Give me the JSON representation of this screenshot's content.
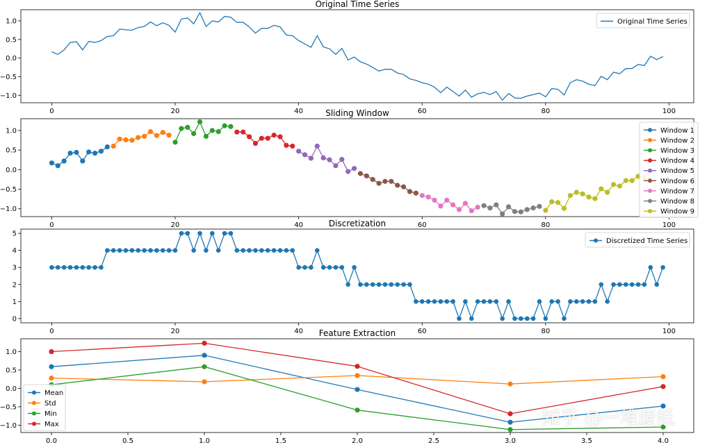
{
  "colors": {
    "tab_blue": "#1f77b4",
    "tab_orange": "#ff7f0e",
    "tab_green": "#2ca02c",
    "tab_red": "#d62728",
    "tab_purple": "#9467bd",
    "tab_brown": "#8c564b",
    "tab_pink": "#e377c2",
    "tab_gray": "#7f7f7f",
    "tab_olive": "#bcbd22"
  },
  "watermark": "知乎 @一堆废纸",
  "chart_data": [
    {
      "type": "line",
      "title": "Original Time Series",
      "xlim": [
        -5,
        104
      ],
      "ylim": [
        -1.2,
        1.3
      ],
      "xticks": [
        0,
        20,
        40,
        60,
        80,
        100
      ],
      "xtick_labels": [
        "0",
        "20",
        "40",
        "60",
        "80",
        "100"
      ],
      "yticks": [
        -1.0,
        -0.5,
        0.0,
        0.5,
        1.0
      ],
      "ytick_labels": [
        "−1.0",
        "−0.5",
        "0.0",
        "0.5",
        "1.0"
      ],
      "legend_position": "top-right",
      "series": [
        {
          "name": "Original Time Series",
          "color": "#1f77b4",
          "markers": false,
          "values": [
            0.17,
            0.1,
            0.22,
            0.42,
            0.44,
            0.22,
            0.45,
            0.42,
            0.47,
            0.58,
            0.6,
            0.78,
            0.76,
            0.75,
            0.82,
            0.85,
            0.97,
            0.87,
            0.95,
            0.88,
            0.7,
            1.05,
            1.08,
            0.92,
            1.22,
            0.85,
            1.0,
            0.97,
            1.12,
            1.1,
            0.96,
            0.96,
            0.84,
            0.67,
            0.8,
            0.8,
            0.88,
            0.84,
            0.62,
            0.6,
            0.47,
            0.38,
            0.29,
            0.6,
            0.3,
            0.25,
            0.1,
            0.26,
            -0.05,
            0.03,
            -0.1,
            -0.16,
            -0.25,
            -0.35,
            -0.3,
            -0.3,
            -0.4,
            -0.44,
            -0.56,
            -0.6,
            -0.66,
            -0.7,
            -0.78,
            -0.93,
            -0.78,
            -0.9,
            -1.02,
            -0.86,
            -1.05,
            -0.96,
            -0.92,
            -0.98,
            -0.9,
            -1.13,
            -0.95,
            -1.07,
            -1.08,
            -1.02,
            -0.98,
            -0.94,
            -1.04,
            -0.82,
            -0.84,
            -0.99,
            -0.66,
            -0.58,
            -0.62,
            -0.7,
            -0.74,
            -0.49,
            -0.58,
            -0.38,
            -0.42,
            -0.28,
            -0.28,
            -0.17,
            -0.2,
            0.05,
            -0.04,
            0.04
          ]
        }
      ]
    },
    {
      "type": "line",
      "title": "Sliding Window",
      "xlim": [
        -5,
        104
      ],
      "ylim": [
        -1.2,
        1.3
      ],
      "xticks": [
        0,
        20,
        40,
        60,
        80,
        100
      ],
      "xtick_labels": [
        "0",
        "20",
        "40",
        "60",
        "80",
        "100"
      ],
      "yticks": [
        -1.0,
        -0.5,
        0.0,
        0.5,
        1.0
      ],
      "ytick_labels": [
        "−1.0",
        "−0.5",
        "0.0",
        "0.5",
        "1.0"
      ],
      "legend_position": "right",
      "series": [
        {
          "name": "Window 1",
          "color": "#1f77b4",
          "start": 0,
          "values": [
            0.17,
            0.1,
            0.22,
            0.42,
            0.44,
            0.22,
            0.45,
            0.42,
            0.47,
            0.58
          ]
        },
        {
          "name": "Window 2",
          "color": "#ff7f0e",
          "start": 10,
          "values": [
            0.6,
            0.78,
            0.76,
            0.75,
            0.82,
            0.85,
            0.97,
            0.87,
            0.95,
            0.88
          ]
        },
        {
          "name": "Window 3",
          "color": "#2ca02c",
          "start": 20,
          "values": [
            0.7,
            1.05,
            1.08,
            0.92,
            1.22,
            0.85,
            1.0,
            0.97,
            1.12,
            1.1
          ]
        },
        {
          "name": "Window 4",
          "color": "#d62728",
          "start": 30,
          "values": [
            0.96,
            0.96,
            0.84,
            0.67,
            0.8,
            0.8,
            0.88,
            0.84,
            0.62,
            0.6
          ]
        },
        {
          "name": "Window 5",
          "color": "#9467bd",
          "start": 40,
          "values": [
            0.47,
            0.38,
            0.29,
            0.6,
            0.3,
            0.25,
            0.1,
            0.26,
            -0.05,
            0.03
          ]
        },
        {
          "name": "Window 6",
          "color": "#8c564b",
          "start": 50,
          "values": [
            -0.1,
            -0.16,
            -0.25,
            -0.35,
            -0.3,
            -0.3,
            -0.4,
            -0.44,
            -0.56,
            -0.6
          ]
        },
        {
          "name": "Window 7",
          "color": "#e377c2",
          "start": 60,
          "values": [
            -0.66,
            -0.7,
            -0.78,
            -0.93,
            -0.78,
            -0.9,
            -1.02,
            -0.86,
            -1.05,
            -0.96
          ]
        },
        {
          "name": "Window 8",
          "color": "#7f7f7f",
          "start": 70,
          "values": [
            -0.92,
            -0.98,
            -0.9,
            -1.13,
            -0.95,
            -1.07,
            -1.08,
            -1.02,
            -0.98,
            -0.94
          ]
        },
        {
          "name": "Window 9",
          "color": "#bcbd22",
          "start": 80,
          "values": [
            -1.04,
            -0.82,
            -0.84,
            -0.99,
            -0.66,
            -0.58,
            -0.62,
            -0.7,
            -0.74,
            -0.49,
            -0.58,
            -0.38,
            -0.42,
            -0.28,
            -0.28,
            -0.17,
            -0.2
          ]
        }
      ]
    },
    {
      "type": "line",
      "title": "Discretization",
      "xlim": [
        -5,
        104
      ],
      "ylim": [
        -0.25,
        5.25
      ],
      "xticks": [
        0,
        20,
        40,
        60,
        80,
        100
      ],
      "xtick_labels": [
        "0",
        "20",
        "40",
        "60",
        "80",
        "100"
      ],
      "yticks": [
        0,
        1,
        2,
        3,
        4,
        5
      ],
      "ytick_labels": [
        "0",
        "1",
        "2",
        "3",
        "4",
        "5"
      ],
      "legend_position": "top-right",
      "series": [
        {
          "name": "Discretized Time Series",
          "color": "#1f77b4",
          "markers": true,
          "values": [
            3,
            3,
            3,
            3,
            3,
            3,
            3,
            3,
            3,
            4,
            4,
            4,
            4,
            4,
            4,
            4,
            4,
            4,
            4,
            4,
            4,
            5,
            5,
            4,
            5,
            4,
            5,
            4,
            5,
            5,
            4,
            4,
            4,
            4,
            4,
            4,
            4,
            4,
            4,
            4,
            3,
            3,
            3,
            4,
            3,
            3,
            3,
            3,
            2,
            3,
            2,
            2,
            2,
            2,
            2,
            2,
            2,
            2,
            2,
            1,
            1,
            1,
            1,
            1,
            1,
            1,
            0,
            1,
            0,
            1,
            1,
            1,
            1,
            0,
            1,
            0,
            0,
            0,
            0,
            1,
            0,
            1,
            1,
            0,
            1,
            1,
            1,
            1,
            1,
            2,
            1,
            2,
            2,
            2,
            2,
            2,
            2,
            3,
            2,
            3
          ]
        }
      ]
    },
    {
      "type": "line",
      "title": "Feature Extraction",
      "xlim": [
        -0.2,
        4.2
      ],
      "ylim": [
        -1.2,
        1.35
      ],
      "x": [
        0,
        1,
        2,
        3,
        4
      ],
      "xticks": [
        0,
        0.5,
        1,
        1.5,
        2,
        2.5,
        3,
        3.5,
        4
      ],
      "xtick_labels": [
        "0.0",
        "0.5",
        "1.0",
        "1.5",
        "2.0",
        "2.5",
        "3.0",
        "3.5",
        "4.0"
      ],
      "yticks": [
        -1.0,
        -0.5,
        0.0,
        0.5,
        1.0
      ],
      "ytick_labels": [
        "−1.0",
        "−0.5",
        "0.0",
        "0.5",
        "1.0"
      ],
      "legend_position": "bottom-left",
      "series": [
        {
          "name": "Mean",
          "color": "#1f77b4",
          "values": [
            0.59,
            0.9,
            -0.03,
            -0.92,
            -0.48
          ]
        },
        {
          "name": "Std",
          "color": "#ff7f0e",
          "values": [
            0.28,
            0.18,
            0.35,
            0.12,
            0.32
          ]
        },
        {
          "name": "Min",
          "color": "#2ca02c",
          "values": [
            0.1,
            0.59,
            -0.59,
            -1.12,
            -1.05
          ]
        },
        {
          "name": "Max",
          "color": "#d62728",
          "values": [
            1.0,
            1.23,
            0.6,
            -0.69,
            0.05
          ]
        }
      ]
    }
  ]
}
